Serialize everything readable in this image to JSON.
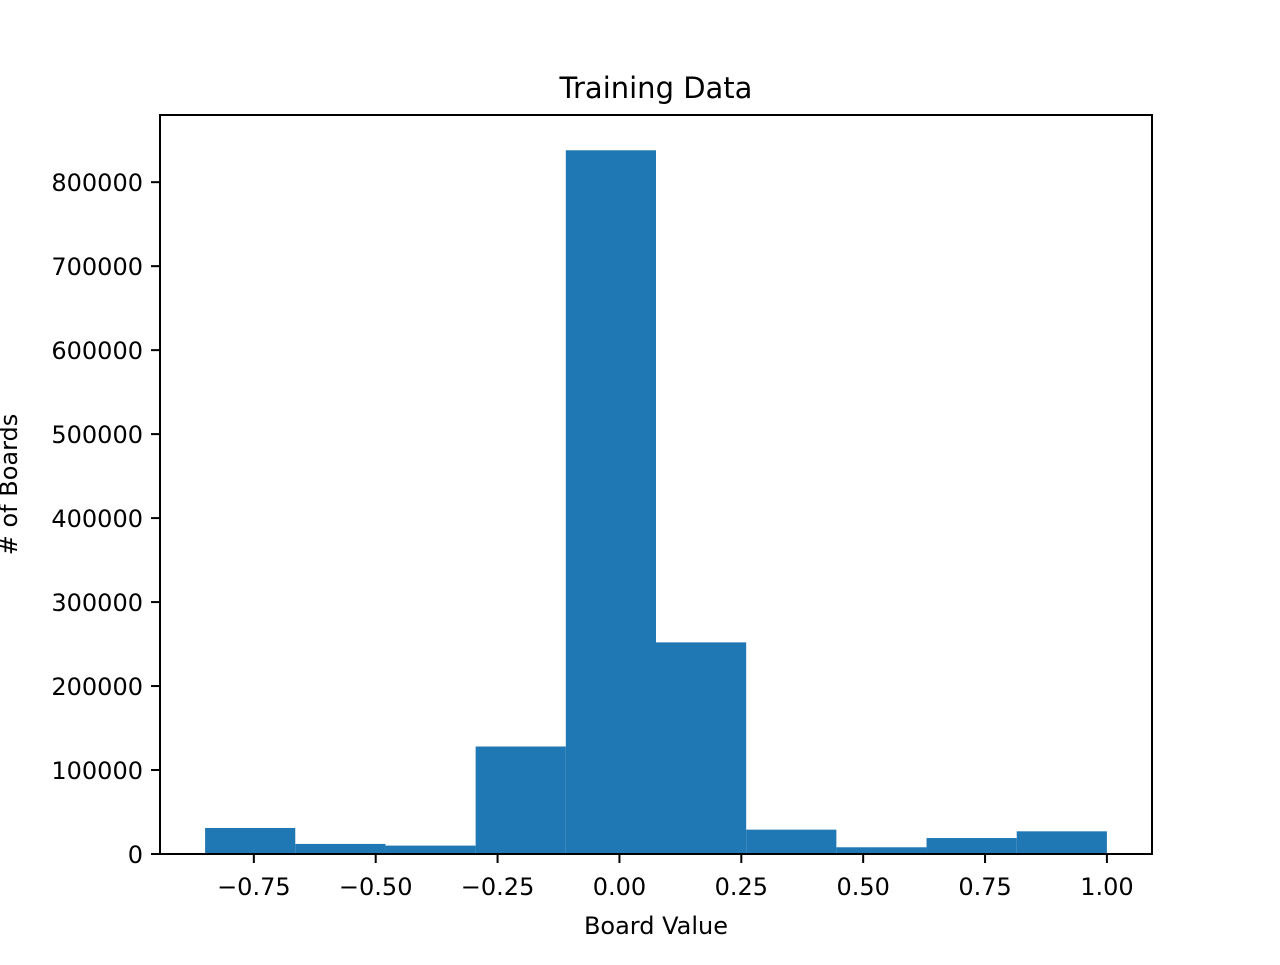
{
  "chart_data": {
    "type": "bar",
    "title": "Training Data",
    "xlabel": "Board Value",
    "ylabel": "# of Boards",
    "bin_edges": [
      -0.85,
      -0.665,
      -0.48,
      -0.295,
      -0.11,
      0.075,
      0.26,
      0.445,
      0.63,
      0.815,
      1.0
    ],
    "values": [
      31000,
      12000,
      10000,
      128000,
      838000,
      252000,
      29000,
      8000,
      19000,
      27000
    ],
    "xlim": [
      -0.9425,
      1.0925
    ],
    "ylim": [
      0,
      880000
    ],
    "x_ticks": [
      -0.75,
      -0.5,
      -0.25,
      0.0,
      0.25,
      0.5,
      0.75,
      1.0
    ],
    "x_tick_labels": [
      "−0.75",
      "−0.50",
      "−0.25",
      "0.00",
      "0.25",
      "0.50",
      "0.75",
      "1.00"
    ],
    "y_ticks": [
      0,
      100000,
      200000,
      300000,
      400000,
      500000,
      600000,
      700000,
      800000
    ],
    "y_tick_labels": [
      "0",
      "100000",
      "200000",
      "300000",
      "400000",
      "500000",
      "600000",
      "700000",
      "800000"
    ],
    "bar_color": "#1f77b4",
    "grid": false,
    "legend": "none"
  }
}
